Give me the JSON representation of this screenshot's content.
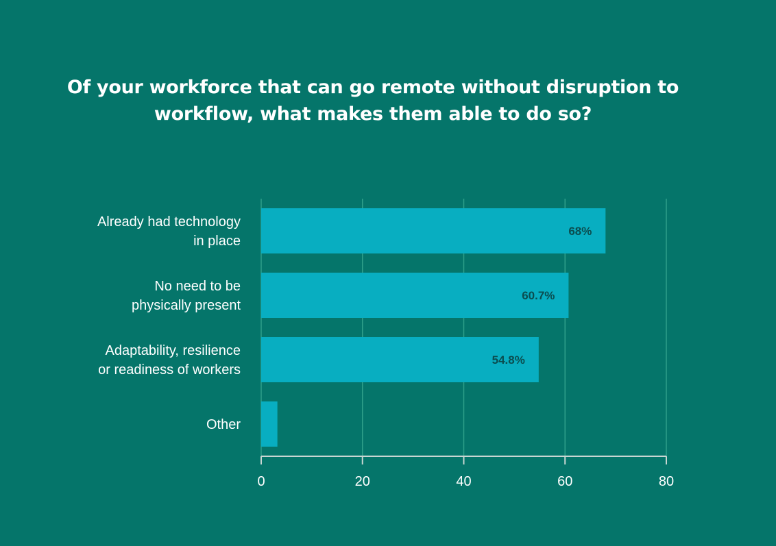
{
  "chart_data": {
    "type": "bar",
    "orientation": "horizontal",
    "title": "Of your workforce that can go remote without disruption to workflow, what makes them able to do so?",
    "categories": [
      [
        "Already had technology",
        "in place"
      ],
      [
        "No need to be",
        "physically present"
      ],
      [
        "Adaptability, resilience",
        "or readiness of workers"
      ],
      [
        "Other"
      ]
    ],
    "values": [
      68,
      60.7,
      54.8,
      3.2
    ],
    "data_labels": [
      "68%",
      "60.7%",
      "54.8%",
      ""
    ],
    "xlim": [
      0,
      80
    ],
    "xticks": [
      0,
      20,
      40,
      60,
      80
    ],
    "xlabel": "",
    "ylabel": "",
    "grid": true,
    "legend": "none",
    "colors": {
      "background": "#05756a",
      "bar": "#08aec1",
      "gridline": "#2f9f8a",
      "axis": "#c9d6d2",
      "text": "#ffffff",
      "data_label": "#0b4d4f"
    }
  }
}
